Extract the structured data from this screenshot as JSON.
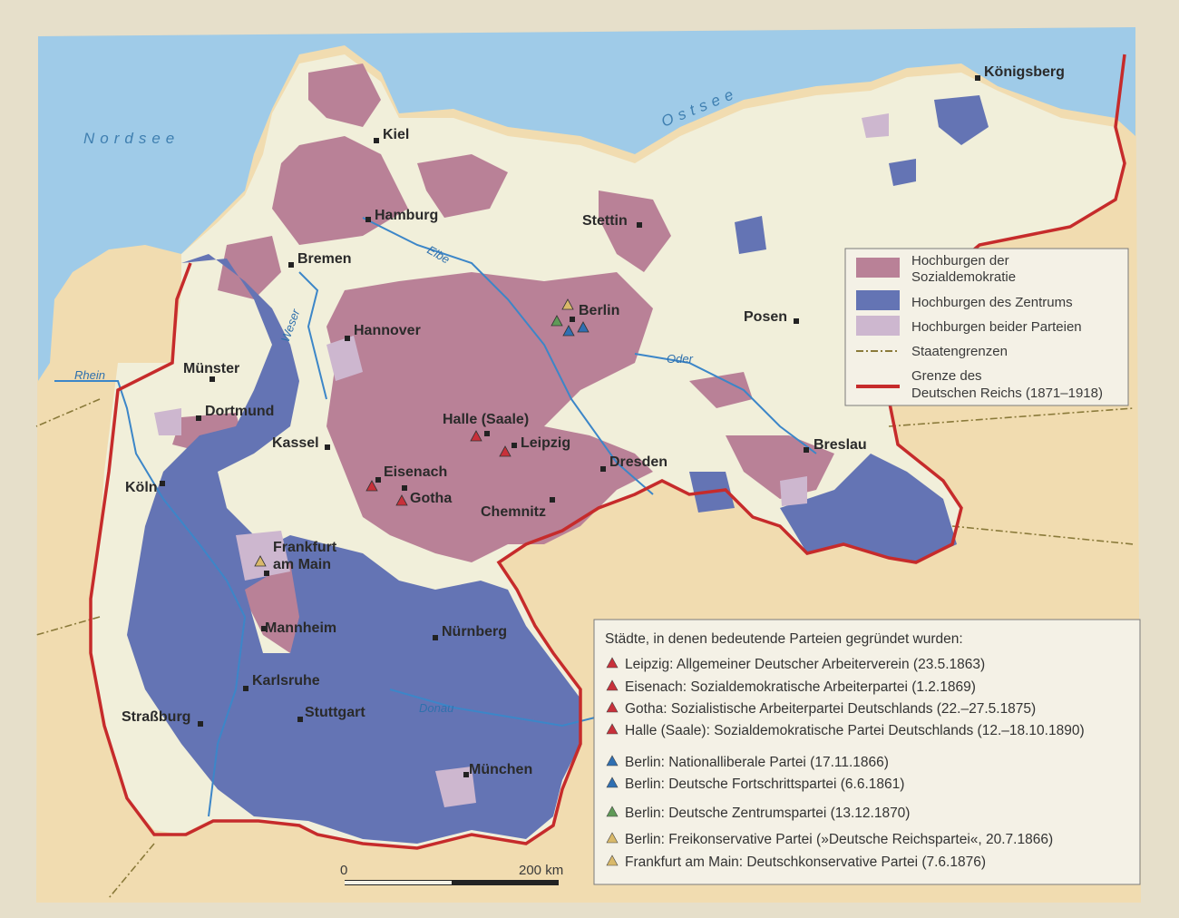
{
  "seas": {
    "north": "Nordsee",
    "baltic": "Ostsee"
  },
  "rivers": {
    "rhein": "Rhein",
    "weser": "Weser",
    "elbe": "Elbe",
    "oder": "Oder",
    "donau": "Donau"
  },
  "cities": {
    "koenigsberg": "Königsberg",
    "kiel": "Kiel",
    "hamburg": "Hamburg",
    "stettin": "Stettin",
    "bremen": "Bremen",
    "berlin": "Berlin",
    "posen": "Posen",
    "hannover": "Hannover",
    "muenster": "Münster",
    "dortmund": "Dortmund",
    "halle": "Halle (Saale)",
    "leipzig": "Leipzig",
    "kassel": "Kassel",
    "dresden": "Dresden",
    "breslau": "Breslau",
    "eisenach": "Eisenach",
    "gotha": "Gotha",
    "koeln": "Köln",
    "chemnitz": "Chemnitz",
    "frankfurt_line1": "Frankfurt",
    "frankfurt_line2": "am Main",
    "mannheim": "Mannheim",
    "nuernberg": "Nürnberg",
    "karlsruhe": "Karlsruhe",
    "strassburg": "Straßburg",
    "stuttgart": "Stuttgart",
    "muenchen": "München"
  },
  "legend": {
    "spd_line1": "Hochburgen der",
    "spd_line2": "Sozialdemokratie",
    "zentrum": "Hochburgen des Zentrums",
    "both": "Hochburgen beider Parteien",
    "state_borders": "Staatengrenzen",
    "reich_line1": "Grenze des",
    "reich_line2": "Deutschen Reichs (1871–1918)",
    "colors": {
      "spd": "#b98197",
      "zentrum": "#6474b4",
      "both": "#cdb7cf",
      "state_border": "#8a7a3a",
      "reich_border": "#c62b2b"
    }
  },
  "foundings": {
    "title": "Städte, in denen bedeutende Parteien gegründet wurden:",
    "items": [
      {
        "text": "Leipzig: Allgemeiner Deutscher Arbeiterverein (23.5.1863)",
        "color": "#c8303a"
      },
      {
        "text": "Eisenach: Sozialdemokratische Arbeiterpartei (1.2.1869)",
        "color": "#c8303a"
      },
      {
        "text": "Gotha: Sozialistische Arbeiterpartei Deutschlands (22.–27.5.1875)",
        "color": "#c8303a"
      },
      {
        "text": "Halle (Saale): Sozialdemokratische Partei Deutschlands (12.–18.10.1890)",
        "color": "#c8303a"
      },
      {
        "text": "Berlin: Nationalliberale Partei (17.11.1866)",
        "color": "#2f6fb2"
      },
      {
        "text": "Berlin: Deutsche Fortschrittspartei (6.6.1861)",
        "color": "#2f6fb2"
      },
      {
        "text": "Berlin: Deutsche Zentrumspartei (13.12.1870)",
        "color": "#5f9a57"
      },
      {
        "text": "Berlin: Freikonservative Partei (»Deutsche Reichspartei«, 20.7.1866)",
        "color": "#d9b96a"
      },
      {
        "text": "Frankfurt am Main: Deutschkonservative Partei (7.6.1876)",
        "color": "#d9b96a"
      }
    ]
  },
  "scale": {
    "zero": "0",
    "end": "200 km"
  },
  "colors": {
    "sea": "#9fcbe8",
    "land_in": "#f1efda",
    "land_out": "#f1dcb0",
    "river": "#3c86c8"
  }
}
